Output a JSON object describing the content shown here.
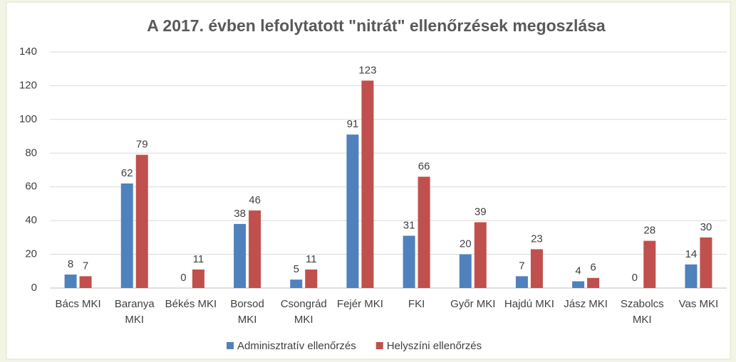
{
  "chart_data": {
    "type": "bar",
    "title": "A 2017. évben lefolytatott \"nitrát\" ellenőrzések megoszlása",
    "categories": [
      "Bács MKI",
      "Baranya MKI",
      "Békés MKI",
      "Borsod MKI",
      "Csongrád MKI",
      "Fejér MKI",
      "FKI",
      "Győr MKI",
      "Hajdú MKI",
      "Jász MKI",
      "Szabolcs MKI",
      "Vas MKI"
    ],
    "series": [
      {
        "name": "Adminisztratív ellenőrzés",
        "color": "#4f81bd",
        "values": [
          8,
          62,
          0,
          38,
          5,
          91,
          31,
          20,
          7,
          4,
          0,
          14
        ]
      },
      {
        "name": "Helyszíni ellenőrzés",
        "color": "#c0504d",
        "values": [
          7,
          79,
          11,
          46,
          11,
          123,
          66,
          39,
          23,
          6,
          28,
          30
        ]
      }
    ],
    "ylim": [
      0,
      140
    ],
    "yticks": [
      0,
      20,
      40,
      60,
      80,
      100,
      120,
      140
    ],
    "grid": true,
    "legend": "bottom"
  }
}
